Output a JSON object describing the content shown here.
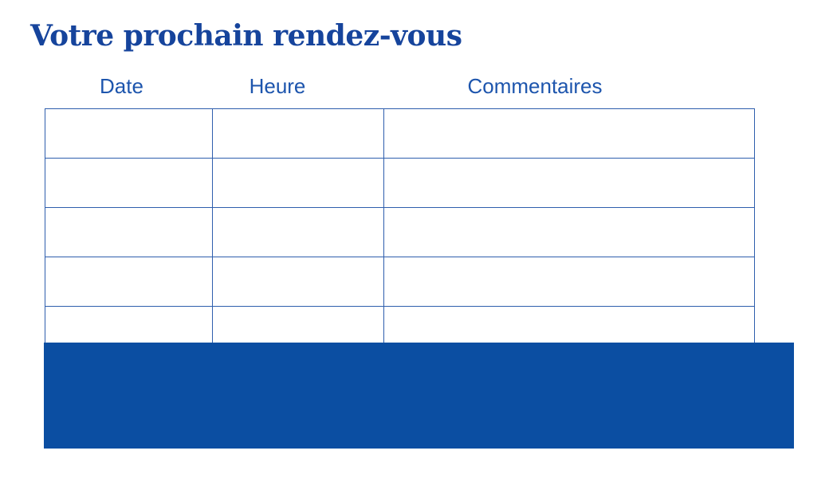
{
  "title": {
    "text": "Votre prochain rendez-vous",
    "color": "#16449c"
  },
  "table": {
    "headers": [
      "Date",
      "Heure",
      "Commentaires"
    ],
    "header_color": "#1d55ad",
    "border_color": "#2e5ead",
    "row_count": 5,
    "cells": [
      [
        "",
        "",
        ""
      ],
      [
        "",
        "",
        ""
      ],
      [
        "",
        "",
        ""
      ],
      [
        "",
        "",
        ""
      ],
      [
        "",
        "",
        ""
      ]
    ]
  },
  "footer_panel": {
    "color": "#0b4ea2"
  }
}
